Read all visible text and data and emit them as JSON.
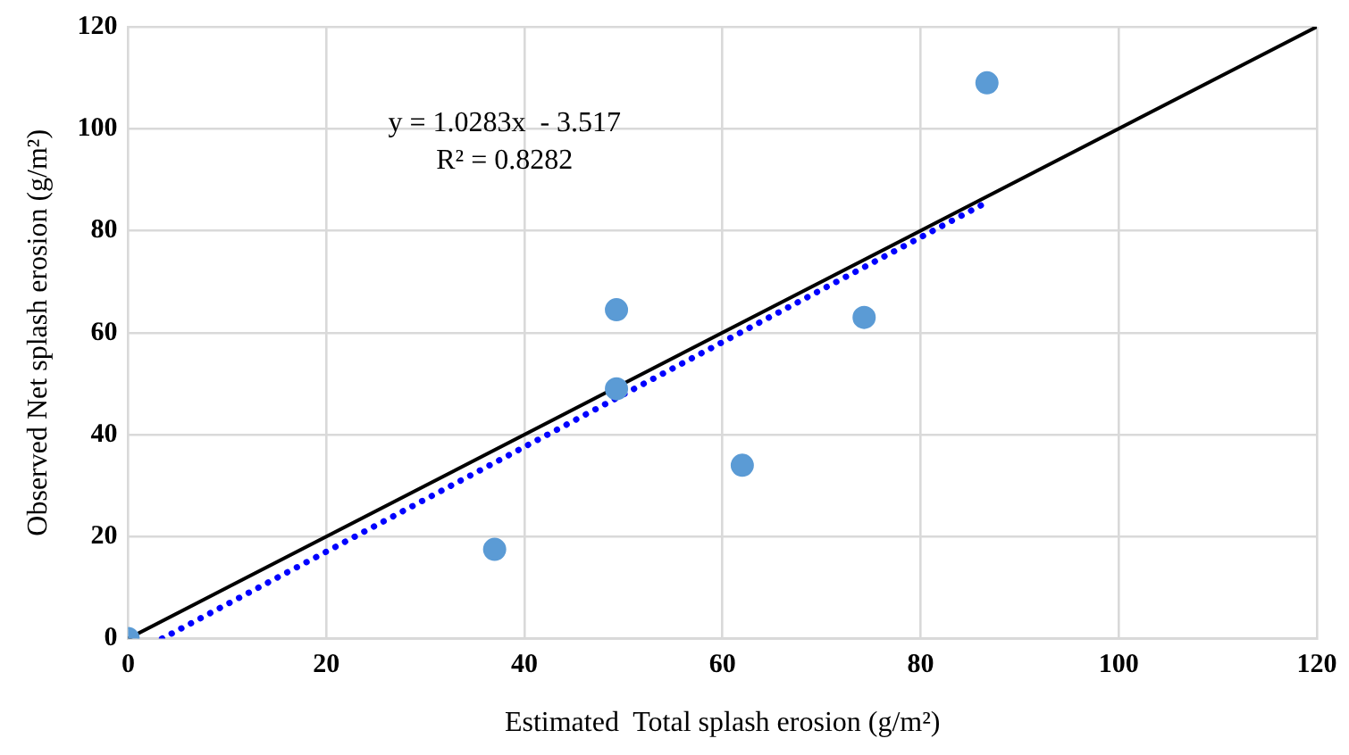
{
  "chart_data": {
    "type": "scatter",
    "xlabel": "Estimated  Total splash erosion (g/m²)",
    "ylabel": "Observed Net splash erosion (g/m²)",
    "annotations": [
      "y = 1.0283x  - 3.517",
      "R² = 0.8282"
    ],
    "series": [
      {
        "type": "scatter",
        "marker": "circle",
        "color": "#5b9bd5",
        "x": [
          0,
          37,
          49.3,
          49.3,
          62,
          74.3,
          86.7
        ],
        "values": [
          0,
          17.5,
          49,
          64.5,
          34,
          63,
          109
        ]
      },
      {
        "type": "line",
        "marker": "none",
        "color": "#000000",
        "line_style": "solid",
        "x": [
          0,
          120
        ],
        "values": [
          0,
          120
        ]
      },
      {
        "type": "line",
        "marker": "none",
        "color": "#0000ff",
        "line_style": "dotted",
        "x": [
          3.42,
          86.7
        ],
        "values": [
          0,
          85.6
        ]
      }
    ],
    "xlim": [
      0,
      120
    ],
    "ylim": [
      0,
      120
    ],
    "xticks": [
      0,
      20,
      40,
      60,
      80,
      100,
      120
    ],
    "yticks": [
      0,
      20,
      40,
      60,
      80,
      100,
      120
    ],
    "grid": true,
    "legend": false
  }
}
